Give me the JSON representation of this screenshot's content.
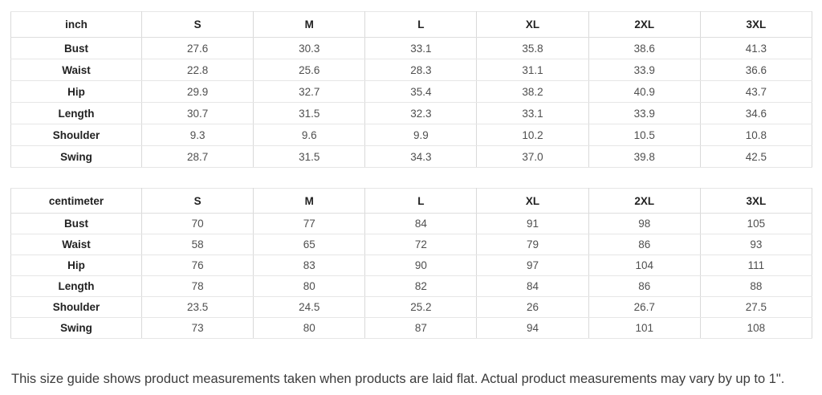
{
  "tables": [
    {
      "unit_label": "inch",
      "columns": [
        "S",
        "M",
        "L",
        "XL",
        "2XL",
        "3XL"
      ],
      "rows": [
        {
          "label": "Bust",
          "values": [
            "27.6",
            "30.3",
            "33.1",
            "35.8",
            "38.6",
            "41.3"
          ]
        },
        {
          "label": "Waist",
          "values": [
            "22.8",
            "25.6",
            "28.3",
            "31.1",
            "33.9",
            "36.6"
          ]
        },
        {
          "label": "Hip",
          "values": [
            "29.9",
            "32.7",
            "35.4",
            "38.2",
            "40.9",
            "43.7"
          ]
        },
        {
          "label": "Length",
          "values": [
            "30.7",
            "31.5",
            "32.3",
            "33.1",
            "33.9",
            "34.6"
          ]
        },
        {
          "label": "Shoulder",
          "values": [
            "9.3",
            "9.6",
            "9.9",
            "10.2",
            "10.5",
            "10.8"
          ]
        },
        {
          "label": "Swing",
          "values": [
            "28.7",
            "31.5",
            "34.3",
            "37.0",
            "39.8",
            "42.5"
          ]
        }
      ]
    },
    {
      "unit_label": "centimeter",
      "columns": [
        "S",
        "M",
        "L",
        "XL",
        "2XL",
        "3XL"
      ],
      "rows": [
        {
          "label": "Bust",
          "values": [
            "70",
            "77",
            "84",
            "91",
            "98",
            "105"
          ]
        },
        {
          "label": "Waist",
          "values": [
            "58",
            "65",
            "72",
            "79",
            "86",
            "93"
          ]
        },
        {
          "label": "Hip",
          "values": [
            "76",
            "83",
            "90",
            "97",
            "104",
            "111"
          ]
        },
        {
          "label": "Length",
          "values": [
            "78",
            "80",
            "82",
            "84",
            "86",
            "88"
          ]
        },
        {
          "label": "Shoulder",
          "values": [
            "23.5",
            "24.5",
            "25.2",
            "26",
            "26.7",
            "27.5"
          ]
        },
        {
          "label": "Swing",
          "values": [
            "73",
            "80",
            "87",
            "94",
            "101",
            "108"
          ]
        }
      ]
    }
  ],
  "footer": {
    "note": "This size guide shows product measurements taken when products are laid flat. Actual product measurements may vary by up to 1\"."
  }
}
